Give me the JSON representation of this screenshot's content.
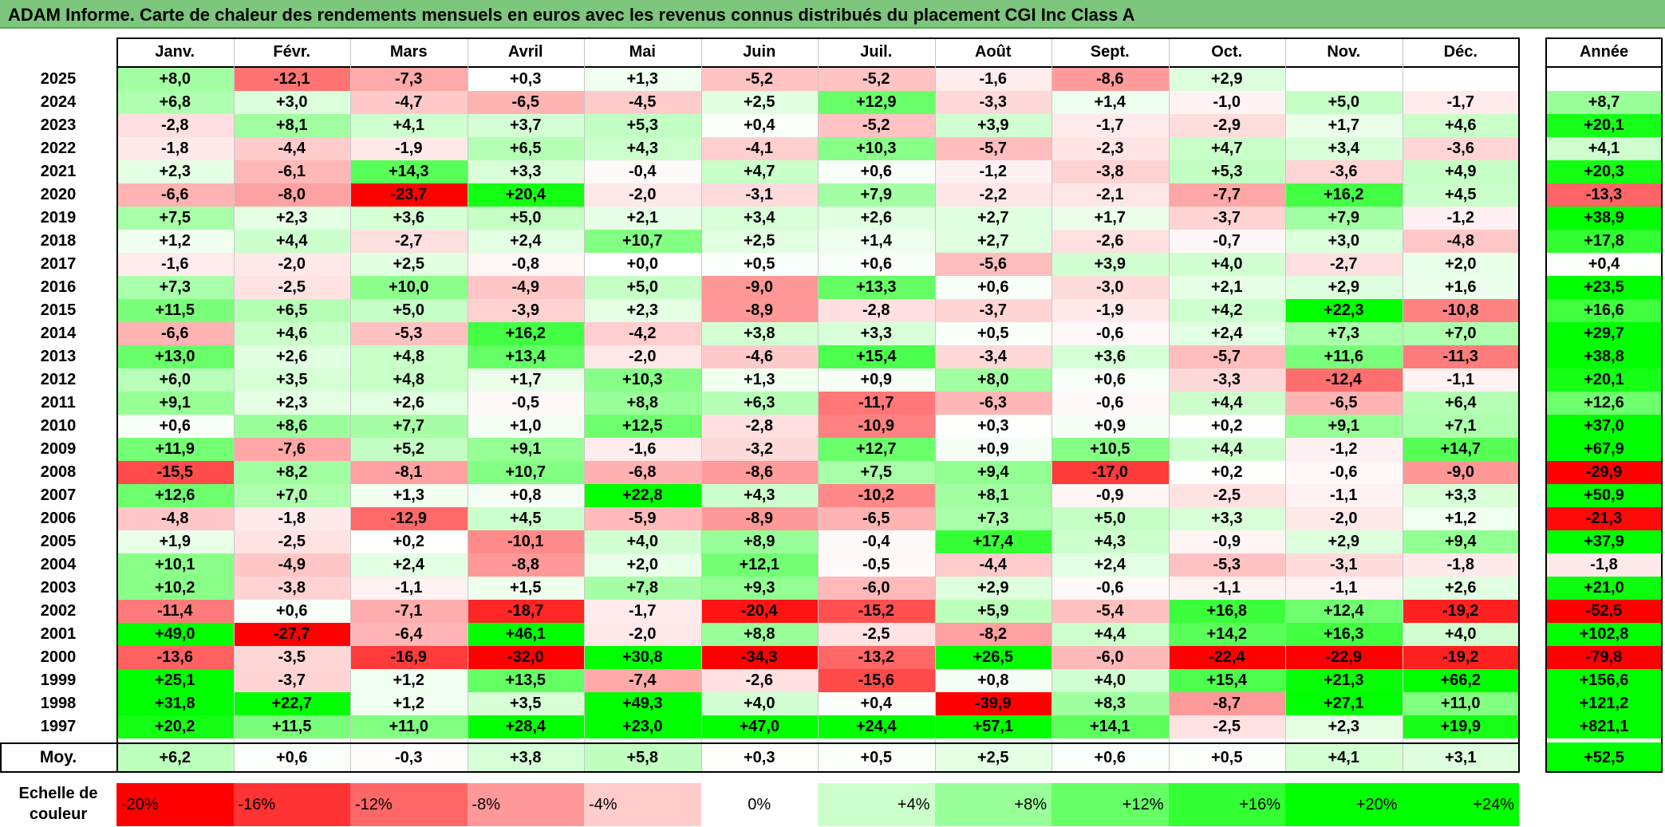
{
  "title": "ADAM Informe. Carte de chaleur des rendements mensuels en euros avec les revenus connus distribués du placement CGI Inc Class A",
  "chart_data": {
    "type": "heatmap",
    "months": [
      "Janv.",
      "Févr.",
      "Mars",
      "Avril",
      "Mai",
      "Juin",
      "Juil.",
      "Août",
      "Sept.",
      "Oct.",
      "Nov.",
      "Déc."
    ],
    "annual_header": "Année",
    "years": [
      "2025",
      "2024",
      "2023",
      "2022",
      "2021",
      "2020",
      "2019",
      "2018",
      "2017",
      "2016",
      "2015",
      "2014",
      "2013",
      "2012",
      "2011",
      "2010",
      "2009",
      "2008",
      "2007",
      "2006",
      "2005",
      "2004",
      "2003",
      "2002",
      "2001",
      "2000",
      "1999",
      "1998",
      "1997"
    ],
    "values": [
      [
        "+8,0",
        "-12,1",
        "-7,3",
        "+0,3",
        "+1,3",
        "-5,2",
        "-5,2",
        "-1,6",
        "-8,6",
        "+2,9",
        "",
        ""
      ],
      [
        "+6,8",
        "+3,0",
        "-4,7",
        "-6,5",
        "-4,5",
        "+2,5",
        "+12,9",
        "-3,3",
        "+1,4",
        "-1,0",
        "+5,0",
        "-1,7"
      ],
      [
        "-2,8",
        "+8,1",
        "+4,1",
        "+3,7",
        "+5,3",
        "+0,4",
        "-5,2",
        "+3,9",
        "-1,7",
        "-2,9",
        "+1,7",
        "+4,6"
      ],
      [
        "-1,8",
        "-4,4",
        "-1,9",
        "+6,5",
        "+4,3",
        "-4,1",
        "+10,3",
        "-5,7",
        "-2,3",
        "+4,7",
        "+3,4",
        "-3,6"
      ],
      [
        "+2,3",
        "-6,1",
        "+14,3",
        "+3,3",
        "-0,4",
        "+4,7",
        "+0,6",
        "-1,2",
        "-3,8",
        "+5,3",
        "-3,6",
        "+4,9"
      ],
      [
        "-6,6",
        "-8,0",
        "-23,7",
        "+20,4",
        "-2,0",
        "-3,1",
        "+7,9",
        "-2,2",
        "-2,1",
        "-7,7",
        "+16,2",
        "+4,5"
      ],
      [
        "+7,5",
        "+2,3",
        "+3,6",
        "+5,0",
        "+2,1",
        "+3,4",
        "+2,6",
        "+2,7",
        "+1,7",
        "-3,7",
        "+7,9",
        "-1,2"
      ],
      [
        "+1,2",
        "+4,4",
        "-2,7",
        "+2,4",
        "+10,7",
        "+2,5",
        "+1,4",
        "+2,7",
        "-2,6",
        "-0,7",
        "+3,0",
        "-4,8"
      ],
      [
        "-1,6",
        "-2,0",
        "+2,5",
        "-0,8",
        "+0,0",
        "+0,5",
        "+0,6",
        "-5,6",
        "+3,9",
        "+4,0",
        "-2,7",
        "+2,0"
      ],
      [
        "+7,3",
        "-2,5",
        "+10,0",
        "-4,9",
        "+5,0",
        "-9,0",
        "+13,3",
        "+0,6",
        "-3,0",
        "+2,1",
        "+2,9",
        "+1,6"
      ],
      [
        "+11,5",
        "+6,5",
        "+5,0",
        "-3,9",
        "+2,3",
        "-8,9",
        "-2,8",
        "-3,7",
        "-1,9",
        "+4,2",
        "+22,3",
        "-10,8"
      ],
      [
        "-6,6",
        "+4,6",
        "-5,3",
        "+16,2",
        "-4,2",
        "+3,8",
        "+3,3",
        "+0,5",
        "-0,6",
        "+2,4",
        "+7,3",
        "+7,0"
      ],
      [
        "+13,0",
        "+2,6",
        "+4,8",
        "+13,4",
        "-2,0",
        "-4,6",
        "+15,4",
        "-3,4",
        "+3,6",
        "-5,7",
        "+11,6",
        "-11,3"
      ],
      [
        "+6,0",
        "+3,5",
        "+4,8",
        "+1,7",
        "+10,3",
        "+1,3",
        "+0,9",
        "+8,0",
        "+0,6",
        "-3,3",
        "-12,4",
        "-1,1"
      ],
      [
        "+9,1",
        "+2,3",
        "+2,6",
        "-0,5",
        "+8,8",
        "+6,3",
        "-11,7",
        "-6,3",
        "-0,6",
        "+4,4",
        "-6,5",
        "+6,4"
      ],
      [
        "+0,6",
        "+8,6",
        "+7,7",
        "+1,0",
        "+12,5",
        "-2,8",
        "-10,9",
        "+0,3",
        "+0,9",
        "+0,2",
        "+9,1",
        "+7,1"
      ],
      [
        "+11,9",
        "-7,6",
        "+5,2",
        "+9,1",
        "-1,6",
        "-3,2",
        "+12,7",
        "+0,9",
        "+10,5",
        "+4,4",
        "-1,2",
        "+14,7"
      ],
      [
        "-15,5",
        "+8,2",
        "-8,1",
        "+10,7",
        "-6,8",
        "-8,6",
        "+7,5",
        "+9,4",
        "-17,0",
        "+0,2",
        "-0,6",
        "-9,0"
      ],
      [
        "+12,6",
        "+7,0",
        "+1,3",
        "+0,8",
        "+22,8",
        "+4,3",
        "-10,2",
        "+8,1",
        "-0,9",
        "-2,5",
        "-1,1",
        "+3,3"
      ],
      [
        "-4,8",
        "-1,8",
        "-12,9",
        "+4,5",
        "-5,9",
        "-8,9",
        "-6,5",
        "+7,3",
        "+5,0",
        "+3,3",
        "-2,0",
        "+1,2"
      ],
      [
        "+1,9",
        "-2,5",
        "+0,2",
        "-10,1",
        "+4,0",
        "+8,9",
        "-0,4",
        "+17,4",
        "+4,3",
        "-0,9",
        "+2,9",
        "+9,4"
      ],
      [
        "+10,1",
        "-4,9",
        "+2,4",
        "-8,8",
        "+2,0",
        "+12,1",
        "-0,5",
        "-4,4",
        "+2,4",
        "-5,3",
        "-3,1",
        "-1,8"
      ],
      [
        "+10,2",
        "-3,8",
        "-1,1",
        "+1,5",
        "+7,8",
        "+9,3",
        "-6,0",
        "+2,9",
        "-0,6",
        "-1,1",
        "-1,1",
        "+2,6"
      ],
      [
        "-11,4",
        "+0,6",
        "-7,1",
        "-18,7",
        "-1,7",
        "-20,4",
        "-15,2",
        "+5,9",
        "-5,4",
        "+16,8",
        "+12,4",
        "-19,2"
      ],
      [
        "+49,0",
        "-27,7",
        "-6,4",
        "+46,1",
        "-2,0",
        "+8,8",
        "-2,5",
        "-8,2",
        "+4,4",
        "+14,2",
        "+16,3",
        "+4,0"
      ],
      [
        "-13,6",
        "-3,5",
        "-16,9",
        "-32,0",
        "+30,8",
        "-34,3",
        "-13,2",
        "+26,5",
        "-6,0",
        "-22,4",
        "-22,9",
        "-19,2"
      ],
      [
        "+25,1",
        "-3,7",
        "+1,2",
        "+13,5",
        "-7,4",
        "-2,6",
        "-15,6",
        "+0,8",
        "+4,0",
        "+15,4",
        "+21,3",
        "+66,2"
      ],
      [
        "+31,8",
        "+22,7",
        "+1,2",
        "+3,5",
        "+49,3",
        "+4,0",
        "+0,4",
        "-39,9",
        "+8,3",
        "-8,7",
        "+27,1",
        "+11,0"
      ],
      [
        "+20,2",
        "+11,5",
        "+11,0",
        "+28,4",
        "+23,0",
        "+47,0",
        "+24,4",
        "+57,1",
        "+14,1",
        "-2,5",
        "+2,3",
        "+19,9"
      ]
    ],
    "annual": [
      "",
      "+8,7",
      "+20,1",
      "+4,1",
      "+20,3",
      "-13,3",
      "+38,9",
      "+17,8",
      "+0,4",
      "+23,5",
      "+16,6",
      "+29,7",
      "+38,8",
      "+20,1",
      "+12,6",
      "+37,0",
      "+67,9",
      "-29,9",
      "+50,9",
      "-21,3",
      "+37,9",
      "-1,8",
      "+21,0",
      "-52,5",
      "+102,8",
      "-79,8",
      "+156,6",
      "+121,2",
      "+821,1"
    ],
    "average_label": "Moy.",
    "average": [
      "+6,2",
      "+0,6",
      "-0,3",
      "+3,8",
      "+5,8",
      "+0,3",
      "+0,5",
      "+2,5",
      "+0,6",
      "+0,5",
      "+4,1",
      "+3,1"
    ],
    "average_annual": "+52,5",
    "legend_title": [
      "Echelle de",
      "couleur"
    ],
    "legend": [
      "-20%",
      "-16%",
      "-12%",
      "-8%",
      "-4%",
      "0%",
      "+4%",
      "+8%",
      "+12%",
      "+16%",
      "+20%",
      "+24%"
    ],
    "legend_values": [
      -20,
      -16,
      -12,
      -8,
      -4,
      0,
      4,
      8,
      12,
      16,
      20,
      24
    ],
    "colors": {
      "negative": "#ff0000",
      "neutral": "#ffffff",
      "positive": "#00ff00",
      "title_bar": "#7dc67d"
    }
  }
}
